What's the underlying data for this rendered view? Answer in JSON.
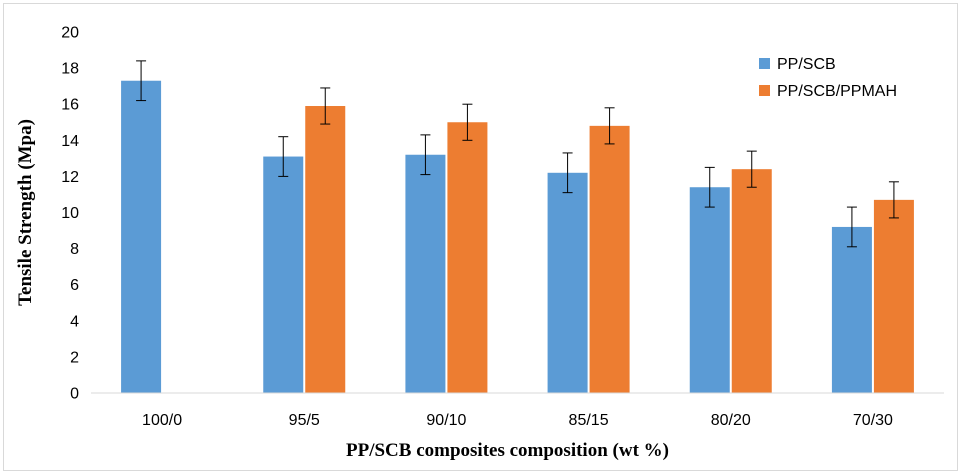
{
  "chart_data": {
    "type": "bar",
    "title": "",
    "xlabel": "PP/SCB composites composition (wt %)",
    "ylabel": "Tensile Strength (Mpa)",
    "ylim": [
      0,
      20
    ],
    "yticks": [
      0,
      2,
      4,
      6,
      8,
      10,
      12,
      14,
      16,
      18,
      20
    ],
    "grid": false,
    "legend_position": "top-right",
    "categories": [
      "100/0",
      "95/5",
      "90/10",
      "85/15",
      "80/20",
      "70/30"
    ],
    "series": [
      {
        "name": "PP/SCB",
        "color": "#5b9bd5",
        "values": [
          17.3,
          13.1,
          13.2,
          12.2,
          11.4,
          9.2
        ],
        "errors": [
          1.1,
          1.1,
          1.1,
          1.1,
          1.1,
          1.1
        ]
      },
      {
        "name": "PP/SCB/PPMAH",
        "color": "#ed7d31",
        "values": [
          null,
          15.9,
          15.0,
          14.8,
          12.4,
          10.7
        ],
        "errors": [
          null,
          1.0,
          1.0,
          1.0,
          1.0,
          1.0
        ]
      }
    ]
  }
}
